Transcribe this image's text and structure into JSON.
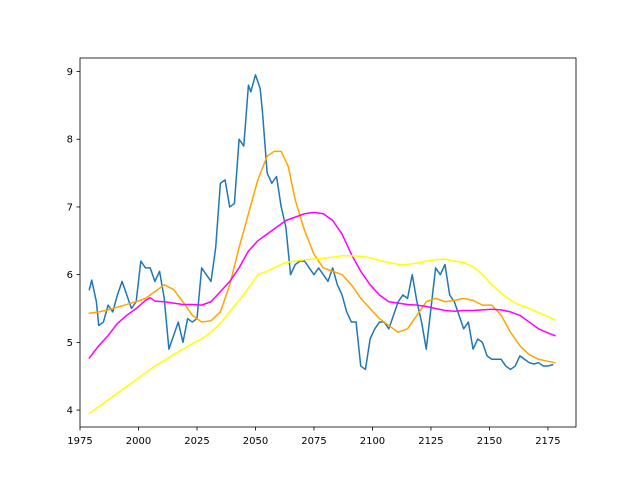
{
  "chart_data": {
    "type": "line",
    "title": "",
    "xlabel": "",
    "ylabel": "",
    "xlim": [
      1975,
      2187
    ],
    "ylim": [
      3.75,
      9.2
    ],
    "grid": false,
    "legend": "none",
    "x_ticks": [
      1975,
      2000,
      2025,
      2050,
      2075,
      2100,
      2125,
      2150,
      2175
    ],
    "y_ticks": [
      4,
      5,
      6,
      7,
      8,
      9
    ],
    "series": [
      {
        "color": "#1f77b4",
        "x": [
          1979,
          1980,
          1982,
          1983,
          1985,
          1987,
          1989,
          1991,
          1993,
          1995,
          1997,
          1999,
          2001,
          2003,
          2005,
          2007,
          2009,
          2011,
          2013,
          2015,
          2017,
          2019,
          2021,
          2023,
          2025,
          2027,
          2029,
          2031,
          2033,
          2035,
          2037,
          2039,
          2041,
          2043,
          2045,
          2047,
          2048,
          2050,
          2052,
          2053,
          2055,
          2057,
          2059,
          2061,
          2063,
          2065,
          2067,
          2069,
          2071,
          2073,
          2075,
          2077,
          2079,
          2081,
          2083,
          2085,
          2087,
          2089,
          2091,
          2093,
          2095,
          2097,
          2099,
          2101,
          2103,
          2105,
          2107,
          2109,
          2111,
          2113,
          2115,
          2117,
          2119,
          2121,
          2123,
          2125,
          2127,
          2129,
          2131,
          2133,
          2135,
          2137,
          2139,
          2141,
          2143,
          2145,
          2147,
          2149,
          2151,
          2153,
          2155,
          2157,
          2159,
          2161,
          2163,
          2165,
          2167,
          2169,
          2171,
          2173,
          2175,
          2177
        ],
        "y": [
          5.78,
          5.92,
          5.6,
          5.25,
          5.3,
          5.55,
          5.45,
          5.7,
          5.9,
          5.7,
          5.5,
          5.6,
          6.2,
          6.1,
          6.1,
          5.9,
          6.05,
          5.65,
          4.9,
          5.1,
          5.3,
          5.0,
          5.35,
          5.3,
          5.35,
          6.1,
          6.0,
          5.9,
          6.4,
          7.35,
          7.4,
          7.0,
          7.05,
          8.0,
          7.9,
          8.8,
          8.7,
          8.95,
          8.75,
          8.4,
          7.5,
          7.35,
          7.45,
          7.0,
          6.7,
          6.0,
          6.15,
          6.2,
          6.2,
          6.1,
          6.0,
          6.1,
          6.0,
          5.9,
          6.1,
          5.85,
          5.7,
          5.45,
          5.3,
          5.3,
          4.65,
          4.6,
          5.05,
          5.2,
          5.3,
          5.3,
          5.2,
          5.4,
          5.6,
          5.7,
          5.65,
          6.0,
          5.6,
          5.3,
          4.9,
          5.5,
          6.1,
          6.0,
          6.15,
          5.7,
          5.6,
          5.4,
          5.2,
          5.3,
          4.9,
          5.05,
          5.0,
          4.8,
          4.75,
          4.75,
          4.75,
          4.65,
          4.6,
          4.65,
          4.8,
          4.75,
          4.7,
          4.68,
          4.7,
          4.65,
          4.65,
          4.67
        ]
      },
      {
        "color": "#ffa500",
        "x": [
          1979,
          1983,
          1987,
          1991,
          1995,
          1999,
          2003,
          2007,
          2011,
          2015,
          2019,
          2023,
          2027,
          2031,
          2035,
          2039,
          2043,
          2047,
          2051,
          2055,
          2058,
          2061,
          2064,
          2067,
          2071,
          2075,
          2079,
          2083,
          2087,
          2091,
          2095,
          2099,
          2103,
          2107,
          2111,
          2115,
          2119,
          2123,
          2127,
          2131,
          2135,
          2139,
          2143,
          2147,
          2151,
          2155,
          2159,
          2163,
          2167,
          2171,
          2175,
          2178
        ],
        "y": [
          5.43,
          5.45,
          5.48,
          5.52,
          5.56,
          5.6,
          5.65,
          5.75,
          5.85,
          5.78,
          5.6,
          5.4,
          5.3,
          5.32,
          5.45,
          5.85,
          6.4,
          6.9,
          7.4,
          7.75,
          7.82,
          7.82,
          7.6,
          7.1,
          6.65,
          6.3,
          6.1,
          6.05,
          6.0,
          5.85,
          5.65,
          5.5,
          5.35,
          5.25,
          5.15,
          5.2,
          5.4,
          5.6,
          5.65,
          5.6,
          5.62,
          5.65,
          5.62,
          5.55,
          5.55,
          5.4,
          5.15,
          4.95,
          4.82,
          4.75,
          4.72,
          4.7
        ]
      },
      {
        "color": "#ff00ff",
        "x": [
          1979,
          1983,
          1987,
          1991,
          1995,
          1999,
          2003,
          2005,
          2007,
          2011,
          2015,
          2019,
          2023,
          2027,
          2031,
          2035,
          2039,
          2043,
          2047,
          2051,
          2055,
          2059,
          2063,
          2067,
          2071,
          2075,
          2079,
          2083,
          2087,
          2091,
          2095,
          2099,
          2103,
          2107,
          2111,
          2115,
          2119,
          2123,
          2127,
          2131,
          2135,
          2139,
          2143,
          2147,
          2151,
          2155,
          2159,
          2163,
          2167,
          2171,
          2175,
          2178
        ],
        "y": [
          4.77,
          4.95,
          5.1,
          5.28,
          5.4,
          5.5,
          5.62,
          5.66,
          5.61,
          5.6,
          5.58,
          5.56,
          5.56,
          5.55,
          5.6,
          5.75,
          5.9,
          6.1,
          6.35,
          6.5,
          6.6,
          6.7,
          6.8,
          6.85,
          6.9,
          6.92,
          6.9,
          6.8,
          6.6,
          6.3,
          6.05,
          5.85,
          5.7,
          5.6,
          5.58,
          5.56,
          5.55,
          5.53,
          5.5,
          5.47,
          5.46,
          5.47,
          5.47,
          5.48,
          5.49,
          5.48,
          5.45,
          5.4,
          5.3,
          5.2,
          5.14,
          5.1
        ]
      },
      {
        "color": "#ffff00",
        "x": [
          1979,
          1983,
          1987,
          1991,
          1995,
          1999,
          2003,
          2007,
          2011,
          2015,
          2019,
          2023,
          2027,
          2031,
          2035,
          2039,
          2043,
          2047,
          2051,
          2055,
          2059,
          2063,
          2067,
          2071,
          2075,
          2079,
          2083,
          2087,
          2091,
          2095,
          2099,
          2103,
          2107,
          2111,
          2115,
          2119,
          2123,
          2127,
          2131,
          2135,
          2139,
          2143,
          2147,
          2151,
          2155,
          2159,
          2163,
          2167,
          2171,
          2175,
          2178
        ],
        "y": [
          3.95,
          4.05,
          4.15,
          4.25,
          4.35,
          4.45,
          4.55,
          4.65,
          4.73,
          4.82,
          4.9,
          4.98,
          5.05,
          5.15,
          5.28,
          5.45,
          5.62,
          5.8,
          6.0,
          6.05,
          6.12,
          6.18,
          6.2,
          6.22,
          6.23,
          6.24,
          6.26,
          6.28,
          6.28,
          6.27,
          6.25,
          6.21,
          6.18,
          6.15,
          6.15,
          6.17,
          6.2,
          6.22,
          6.23,
          6.2,
          6.18,
          6.12,
          6.0,
          5.85,
          5.73,
          5.62,
          5.55,
          5.5,
          5.44,
          5.38,
          5.33
        ]
      }
    ]
  }
}
